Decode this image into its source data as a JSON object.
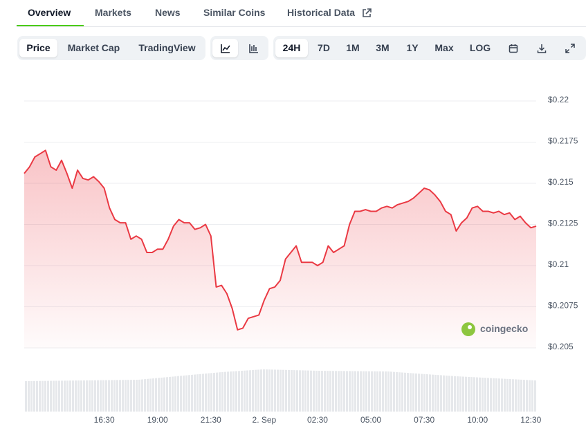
{
  "tabs": [
    "Overview",
    "Markets",
    "News",
    "Similar Coins",
    "Historical Data"
  ],
  "toolbar": {
    "chart_kind": [
      "Price",
      "Market Cap",
      "TradingView"
    ],
    "ranges": [
      "24H",
      "7D",
      "1M",
      "3M",
      "1Y",
      "Max",
      "LOG"
    ]
  },
  "watermark": "coingecko",
  "chart_data": {
    "type": "area",
    "color": "#ea3943",
    "grid": true,
    "ylim": [
      0.205,
      0.22
    ],
    "yticks": [
      {
        "value": 0.205,
        "label": "$0.205"
      },
      {
        "value": 0.2075,
        "label": "$0.2075"
      },
      {
        "value": 0.21,
        "label": "$0.21"
      },
      {
        "value": 0.2125,
        "label": "$0.2125"
      },
      {
        "value": 0.215,
        "label": "$0.215"
      },
      {
        "value": 0.2175,
        "label": "$0.2175"
      },
      {
        "value": 0.22,
        "label": "$0.22"
      }
    ],
    "categories": [
      null,
      null,
      null,
      null,
      null,
      null,
      null,
      null,
      null,
      null,
      null,
      null,
      null,
      null,
      null,
      "16:30",
      null,
      null,
      null,
      null,
      null,
      null,
      null,
      null,
      null,
      "19:00",
      null,
      null,
      null,
      null,
      null,
      null,
      null,
      null,
      null,
      "21:30",
      null,
      null,
      null,
      null,
      null,
      null,
      null,
      null,
      null,
      "2. Sep",
      null,
      null,
      null,
      null,
      null,
      null,
      null,
      null,
      null,
      "02:30",
      null,
      null,
      null,
      null,
      null,
      null,
      null,
      null,
      null,
      "05:00",
      null,
      null,
      null,
      null,
      null,
      null,
      null,
      null,
      null,
      "07:30",
      null,
      null,
      null,
      null,
      null,
      null,
      null,
      null,
      null,
      "10:00",
      null,
      null,
      null,
      null,
      null,
      null,
      null,
      null,
      null,
      "12:30",
      null
    ],
    "values": [
      0.2156,
      0.216,
      0.2166,
      0.2168,
      0.217,
      0.216,
      0.2158,
      0.2164,
      0.2156,
      0.2147,
      0.2158,
      0.2153,
      0.2152,
      0.2154,
      0.2151,
      0.2147,
      0.2135,
      0.2128,
      0.2126,
      0.2126,
      0.2116,
      0.2118,
      0.2116,
      0.2108,
      0.2108,
      0.211,
      0.211,
      0.2116,
      0.2124,
      0.2128,
      0.2126,
      0.2126,
      0.2122,
      0.2123,
      0.2125,
      0.2118,
      0.2087,
      0.2088,
      0.2083,
      0.2074,
      0.2061,
      0.2062,
      0.2068,
      0.2069,
      0.207,
      0.2079,
      0.2086,
      0.2087,
      0.2091,
      0.2104,
      0.2108,
      0.2112,
      0.2102,
      0.2102,
      0.2102,
      0.21,
      0.2102,
      0.2112,
      0.2108,
      0.211,
      0.2112,
      0.2125,
      0.2133,
      0.2133,
      0.2134,
      0.2133,
      0.2133,
      0.2135,
      0.2136,
      0.2135,
      0.2137,
      0.2138,
      0.2139,
      0.2141,
      0.2144,
      0.2147,
      0.2146,
      0.2143,
      0.2139,
      0.2133,
      0.2131,
      0.2121,
      0.2126,
      0.2129,
      0.2135,
      0.2136,
      0.2133,
      0.2133,
      0.2132,
      0.2133,
      0.2131,
      0.2132,
      0.2128,
      0.213,
      0.2126,
      0.2123,
      0.2124
    ]
  }
}
